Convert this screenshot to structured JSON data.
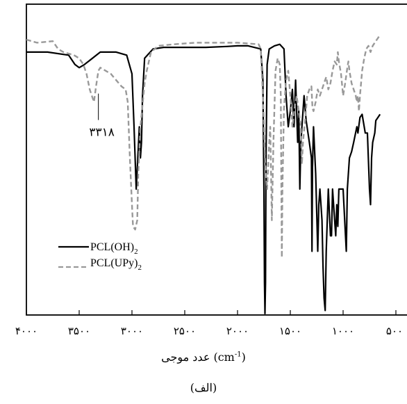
{
  "chart_data": {
    "type": "line",
    "xlabel": "عدد موجی (cm-1)",
    "xlabel_text": "عدد موجی",
    "xlabel_unit_prefix": "(cm",
    "xlabel_unit_exp": "-1",
    "xlabel_unit_suffix": ")",
    "caption": "(الف)",
    "xlim": [
      4000,
      500
    ],
    "x_reversed": true,
    "ylim": [
      0,
      100
    ],
    "y_axis_labels": false,
    "grid": false,
    "legend_position": "lower-left",
    "ticks": [
      {
        "value": 4000,
        "label": "۴۰۰۰"
      },
      {
        "value": 3500,
        "label": "۳۵۰۰"
      },
      {
        "value": 3000,
        "label": "۳۰۰۰"
      },
      {
        "value": 2500,
        "label": "۲۵۰۰"
      },
      {
        "value": 2000,
        "label": "۲۰۰۰"
      },
      {
        "value": 1500,
        "label": "۱۵۰۰"
      },
      {
        "value": 1000,
        "label": "۱۰۰۰"
      },
      {
        "value": 500,
        "label": "۵۰۰"
      }
    ],
    "annotation": {
      "label": "۳۳۱۸",
      "x": 3318,
      "y": 72
    },
    "series": [
      {
        "name": "PCL(OH)",
        "name_subscript": "2",
        "color": "#000000",
        "dash": "solid",
        "points": [
          [
            4000,
            84
          ],
          [
            3800,
            84
          ],
          [
            3600,
            83
          ],
          [
            3540,
            80
          ],
          [
            3500,
            79
          ],
          [
            3450,
            80
          ],
          [
            3300,
            84
          ],
          [
            3150,
            84
          ],
          [
            3050,
            83
          ],
          [
            3000,
            77
          ],
          [
            2980,
            60
          ],
          [
            2960,
            40
          ],
          [
            2945,
            50
          ],
          [
            2930,
            60
          ],
          [
            2920,
            50
          ],
          [
            2910,
            55
          ],
          [
            2900,
            70
          ],
          [
            2880,
            82
          ],
          [
            2800,
            85
          ],
          [
            2700,
            85.5
          ],
          [
            2500,
            85.5
          ],
          [
            2300,
            85.5
          ],
          [
            2100,
            85.8
          ],
          [
            2000,
            86
          ],
          [
            1900,
            86
          ],
          [
            1780,
            85
          ],
          [
            1760,
            75
          ],
          [
            1750,
            40
          ],
          [
            1745,
            10
          ],
          [
            1740,
            0
          ],
          [
            1735,
            10
          ],
          [
            1730,
            50
          ],
          [
            1720,
            80
          ],
          [
            1700,
            85
          ],
          [
            1650,
            86
          ],
          [
            1600,
            86.5
          ],
          [
            1560,
            85
          ],
          [
            1540,
            70
          ],
          [
            1520,
            60
          ],
          [
            1500,
            65
          ],
          [
            1480,
            72
          ],
          [
            1465,
            60
          ],
          [
            1450,
            75
          ],
          [
            1430,
            55
          ],
          [
            1420,
            65
          ],
          [
            1410,
            40
          ],
          [
            1400,
            55
          ],
          [
            1390,
            60
          ],
          [
            1370,
            70
          ],
          [
            1350,
            62
          ],
          [
            1320,
            55
          ],
          [
            1300,
            50
          ],
          [
            1295,
            20
          ],
          [
            1290,
            47
          ],
          [
            1280,
            60
          ],
          [
            1260,
            45
          ],
          [
            1240,
            20
          ],
          [
            1230,
            35
          ],
          [
            1220,
            40
          ],
          [
            1200,
            30
          ],
          [
            1190,
            15
          ],
          [
            1180,
            5
          ],
          [
            1170,
            1
          ],
          [
            1160,
            20
          ],
          [
            1140,
            40
          ],
          [
            1120,
            25
          ],
          [
            1110,
            25
          ],
          [
            1100,
            40
          ],
          [
            1080,
            30
          ],
          [
            1070,
            25
          ],
          [
            1060,
            35
          ],
          [
            1050,
            28
          ],
          [
            1040,
            40
          ],
          [
            1000,
            40
          ],
          [
            970,
            20
          ],
          [
            960,
            40
          ],
          [
            940,
            50
          ],
          [
            920,
            52
          ],
          [
            900,
            55
          ],
          [
            870,
            60
          ],
          [
            860,
            58
          ],
          [
            840,
            63
          ],
          [
            820,
            64
          ],
          [
            810,
            62
          ],
          [
            790,
            58
          ],
          [
            770,
            58
          ],
          [
            750,
            40
          ],
          [
            740,
            35
          ],
          [
            730,
            50
          ],
          [
            720,
            55
          ],
          [
            700,
            58
          ],
          [
            690,
            62
          ],
          [
            670,
            63
          ],
          [
            650,
            64
          ]
        ]
      },
      {
        "name": "PCL(UPy)",
        "name_subscript": "2",
        "color": "#999999",
        "dash": "dashed",
        "points": [
          [
            4000,
            88
          ],
          [
            3900,
            87
          ],
          [
            3750,
            87.5
          ],
          [
            3700,
            85
          ],
          [
            3650,
            84
          ],
          [
            3550,
            83
          ],
          [
            3500,
            82
          ],
          [
            3460,
            80
          ],
          [
            3430,
            77
          ],
          [
            3400,
            72
          ],
          [
            3380,
            70
          ],
          [
            3360,
            68
          ],
          [
            3340,
            73
          ],
          [
            3318,
            78
          ],
          [
            3300,
            79
          ],
          [
            3250,
            78
          ],
          [
            3200,
            77
          ],
          [
            3150,
            75
          ],
          [
            3100,
            73
          ],
          [
            3060,
            72
          ],
          [
            3040,
            68
          ],
          [
            3020,
            50
          ],
          [
            3000,
            35
          ],
          [
            2990,
            28
          ],
          [
            2970,
            27
          ],
          [
            2950,
            30
          ],
          [
            2940,
            45
          ],
          [
            2920,
            60
          ],
          [
            2880,
            74
          ],
          [
            2860,
            78
          ],
          [
            2820,
            84
          ],
          [
            2750,
            86
          ],
          [
            2600,
            86.5
          ],
          [
            2400,
            87
          ],
          [
            2200,
            87
          ],
          [
            2000,
            87
          ],
          [
            1800,
            86.5
          ],
          [
            1780,
            85
          ],
          [
            1760,
            70
          ],
          [
            1740,
            50
          ],
          [
            1720,
            40
          ],
          [
            1700,
            55
          ],
          [
            1690,
            60
          ],
          [
            1675,
            30
          ],
          [
            1660,
            55
          ],
          [
            1640,
            78
          ],
          [
            1620,
            82
          ],
          [
            1600,
            80
          ],
          [
            1590,
            70
          ],
          [
            1585,
            40
          ],
          [
            1580,
            18
          ],
          [
            1575,
            40
          ],
          [
            1560,
            66
          ],
          [
            1540,
            75
          ],
          [
            1520,
            78
          ],
          [
            1500,
            70
          ],
          [
            1480,
            60
          ],
          [
            1460,
            66
          ],
          [
            1440,
            70
          ],
          [
            1420,
            65
          ],
          [
            1400,
            60
          ],
          [
            1390,
            48
          ],
          [
            1380,
            55
          ],
          [
            1360,
            62
          ],
          [
            1340,
            70
          ],
          [
            1320,
            72
          ],
          [
            1300,
            73
          ],
          [
            1290,
            66
          ],
          [
            1280,
            65
          ],
          [
            1260,
            68
          ],
          [
            1240,
            72
          ],
          [
            1220,
            70
          ],
          [
            1200,
            72
          ],
          [
            1180,
            74
          ],
          [
            1160,
            76
          ],
          [
            1140,
            72
          ],
          [
            1120,
            74
          ],
          [
            1100,
            78
          ],
          [
            1080,
            81
          ],
          [
            1060,
            80
          ],
          [
            1050,
            84
          ],
          [
            1040,
            81
          ],
          [
            1020,
            77
          ],
          [
            1000,
            70
          ],
          [
            980,
            74
          ],
          [
            960,
            79
          ],
          [
            950,
            81
          ],
          [
            940,
            78
          ],
          [
            920,
            74
          ],
          [
            900,
            72
          ],
          [
            880,
            70
          ],
          [
            870,
            68
          ],
          [
            860,
            70
          ],
          [
            850,
            65
          ],
          [
            840,
            70
          ],
          [
            820,
            78
          ],
          [
            800,
            82
          ],
          [
            780,
            85
          ],
          [
            760,
            86
          ],
          [
            740,
            84
          ],
          [
            720,
            86
          ],
          [
            700,
            87
          ],
          [
            680,
            88
          ],
          [
            660,
            89
          ],
          [
            650,
            89
          ]
        ]
      }
    ]
  }
}
